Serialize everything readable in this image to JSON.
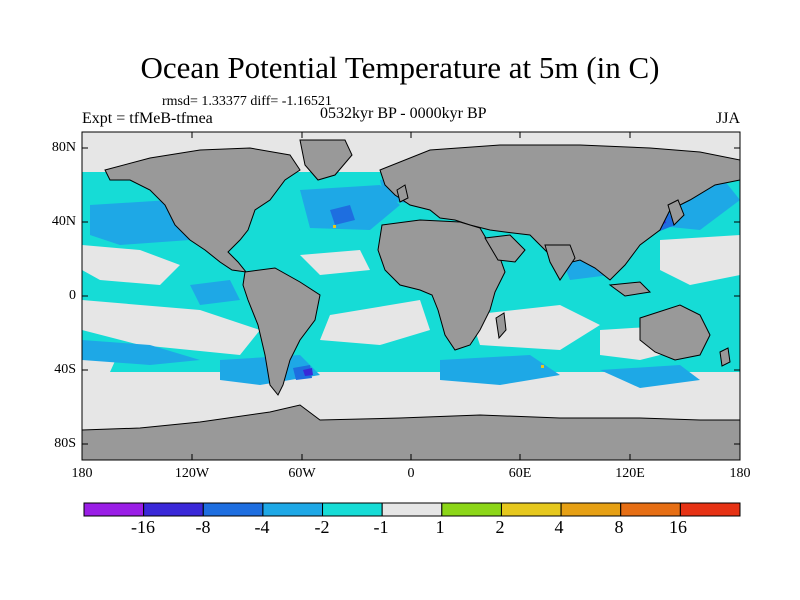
{
  "title": "Ocean Potential Temperature at 5m (in C)",
  "stats": "rmsd= 1.33377 diff= -1.16521",
  "experiment": "Expt = tfMeB-tfmea",
  "period": "0532kyr BP - 0000kyr BP",
  "season": "JJA",
  "y_axis_labels": [
    "80N",
    "40N",
    "0",
    "40S",
    "80S"
  ],
  "x_axis_labels": [
    "180",
    "120W",
    "60W",
    "0",
    "60E",
    "120E",
    "180"
  ],
  "colorbar": {
    "labels": [
      "-16",
      "-8",
      "-4",
      "-2",
      "-1",
      "1",
      "2",
      "4",
      "8",
      "16"
    ],
    "colors": [
      "#9a1ee6",
      "#3a28d8",
      "#1e6ee0",
      "#1ea8e6",
      "#16dcd6",
      "#e6e6e6",
      "#8cd618",
      "#e6c81e",
      "#e6a014",
      "#e66e14",
      "#e63214"
    ]
  },
  "map_colors": {
    "land": "#999999",
    "no_change": "#e6e6e6",
    "cooling_1_2": "#16dcd6",
    "cooling_2_4": "#1ea8e6",
    "cooling_4_8": "#1e6ee0",
    "cooling_8_16": "#3a28d8",
    "warming_2_4": "#e6c81e"
  }
}
